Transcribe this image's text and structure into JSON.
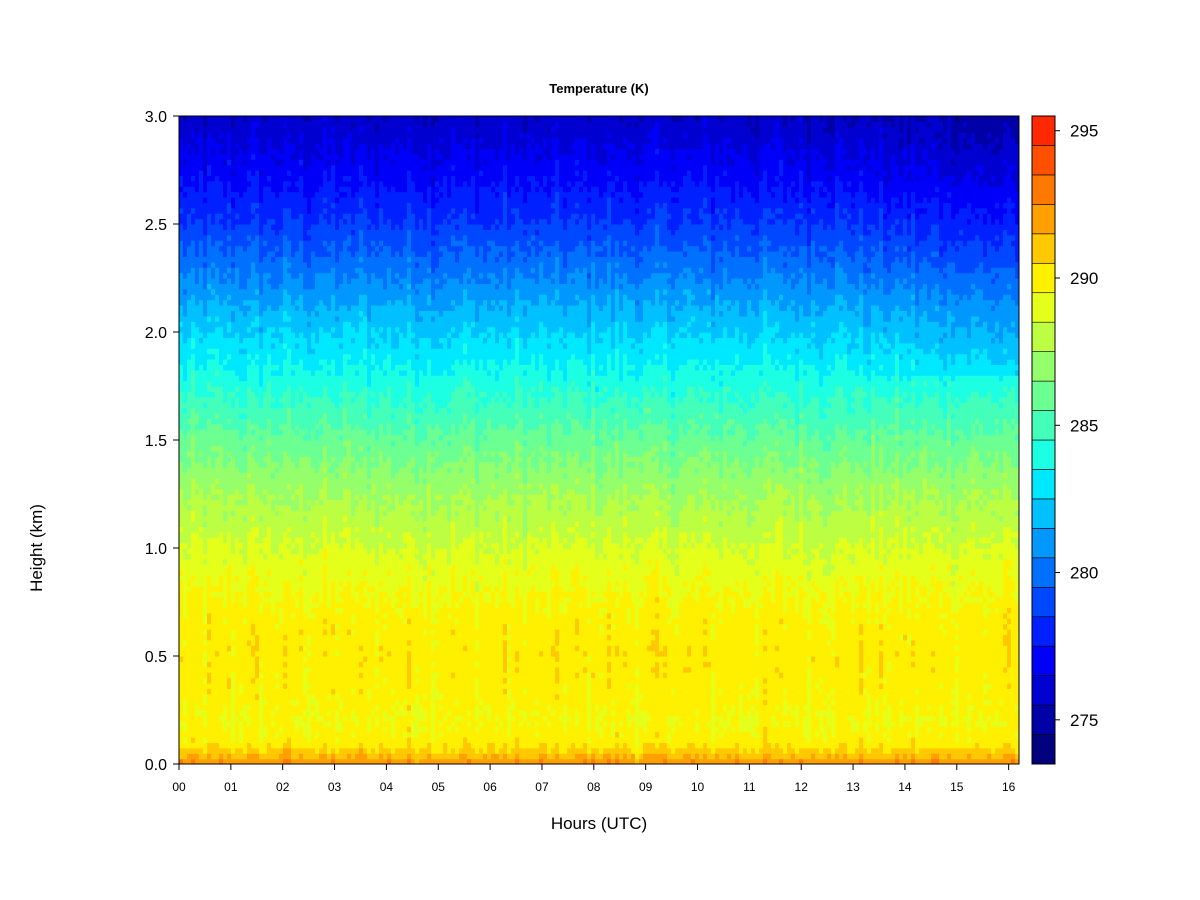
{
  "chart_data": {
    "type": "heatmap",
    "title": "Temperature (K)",
    "xlabel": "Hours (UTC)",
    "ylabel": "Height (km)",
    "x_ticks": [
      "00",
      "01",
      "02",
      "03",
      "04",
      "05",
      "06",
      "07",
      "08",
      "09",
      "10",
      "11",
      "12",
      "13",
      "14",
      "15",
      "16"
    ],
    "xlim": [
      0,
      16.2
    ],
    "y_ticks": [
      "0.0",
      "0.5",
      "1.0",
      "1.5",
      "2.0",
      "2.5",
      "3.0"
    ],
    "ylim": [
      0,
      3.0
    ],
    "colorbar": {
      "ticks": [
        "275",
        "280",
        "285",
        "290",
        "295"
      ],
      "range": [
        274,
        296
      ],
      "step": 1,
      "colors": [
        "#00007f",
        "#0000a7",
        "#0000d0",
        "#0000f8",
        "#0020ff",
        "#0048ff",
        "#0070ff",
        "#0098ff",
        "#00c0ff",
        "#00e8ff",
        "#1cffe2",
        "#44ffba",
        "#6cff92",
        "#94ff6a",
        "#bcff42",
        "#e4ff1a",
        "#fff000",
        "#ffc800",
        "#ffa000",
        "#ff7800",
        "#ff5000",
        "#ff2800",
        "#f20000",
        "#c90000",
        "#9f0000",
        "#7f0000"
      ]
    },
    "temperature_profile": {
      "height_km": [
        0.0,
        0.05,
        0.1,
        0.2,
        0.3,
        0.5,
        0.7,
        0.9,
        1.1,
        1.3,
        1.5,
        1.7,
        1.9,
        2.1,
        2.3,
        2.5,
        2.7,
        2.9,
        3.0
      ],
      "temperature_K": [
        293.0,
        291.5,
        290.5,
        290.0,
        290.3,
        290.6,
        290.3,
        289.6,
        288.6,
        287.6,
        286.4,
        285.0,
        283.6,
        282.2,
        280.6,
        279.1,
        277.8,
        276.7,
        276.2
      ]
    },
    "grid": false,
    "legend": "colorbar-right"
  }
}
